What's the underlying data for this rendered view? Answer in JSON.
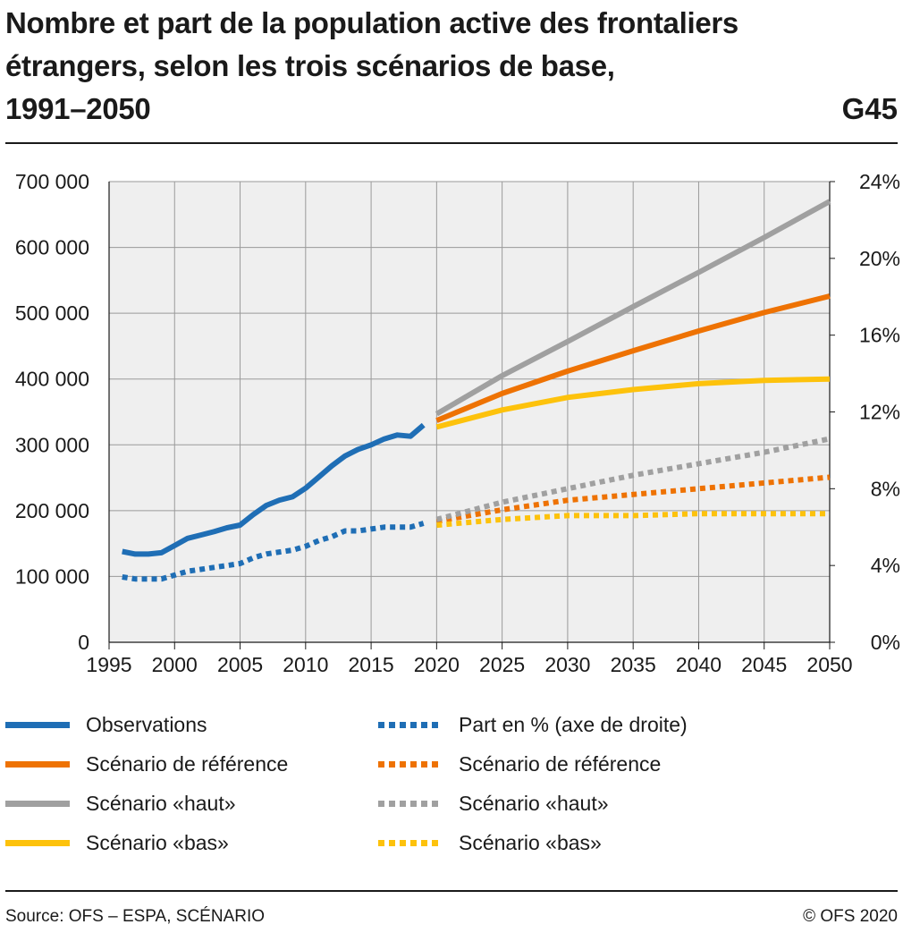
{
  "title_lines": [
    "Nombre et part de la population active des frontaliers",
    "étrangers, selon les trois scénarios de base,",
    "1991–2050"
  ],
  "chart_code": "G45",
  "source": "Source: OFS – ESPA, SCÉNARIO",
  "copyright": "© OFS 2020",
  "colors": {
    "observations": "#1f6eb5",
    "reference": "#ee7203",
    "haut": "#a0a0a0",
    "bas": "#fdc20c",
    "plot_bg": "#efefef",
    "grid": "#9a9a9a"
  },
  "legend": [
    {
      "label": "Observations",
      "color": "#1f6eb5",
      "style": "solid"
    },
    {
      "label": "Part en % (axe de droite)",
      "color": "#1f6eb5",
      "style": "dotted"
    },
    {
      "label": "Scénario de référence",
      "color": "#ee7203",
      "style": "solid"
    },
    {
      "label": "Scénario de référence",
      "color": "#ee7203",
      "style": "dotted"
    },
    {
      "label": "Scénario «haut»",
      "color": "#a0a0a0",
      "style": "solid"
    },
    {
      "label": "Scénario «haut»",
      "color": "#a0a0a0",
      "style": "dotted"
    },
    {
      "label": "Scénario «bas»",
      "color": "#fdc20c",
      "style": "solid"
    },
    {
      "label": "Scénario «bas»",
      "color": "#fdc20c",
      "style": "dotted"
    }
  ],
  "chart_data": {
    "type": "line",
    "title": "Nombre et part de la population active des frontaliers étrangers, selon les trois scénarios de base, 1991–2050",
    "xlim": [
      1995,
      2050
    ],
    "ylim_left": [
      0,
      700000
    ],
    "ylim_right": [
      0,
      24
    ],
    "x_ticks": [
      1995,
      2000,
      2005,
      2010,
      2015,
      2020,
      2025,
      2030,
      2035,
      2040,
      2045,
      2050
    ],
    "y_left_ticks": [
      {
        "value": 0,
        "label": "0"
      },
      {
        "value": 100000,
        "label": "100 000"
      },
      {
        "value": 200000,
        "label": "200 000"
      },
      {
        "value": 300000,
        "label": "300 000"
      },
      {
        "value": 400000,
        "label": "400 000"
      },
      {
        "value": 500000,
        "label": "500 000"
      },
      {
        "value": 600000,
        "label": "600 000"
      },
      {
        "value": 700000,
        "label": "700 000"
      }
    ],
    "y_right_ticks": [
      {
        "value": 0,
        "label": "0%"
      },
      {
        "value": 4,
        "label": "4%"
      },
      {
        "value": 8,
        "label": "8%"
      },
      {
        "value": 12,
        "label": "12%"
      },
      {
        "value": 16,
        "label": "16%"
      },
      {
        "value": 20,
        "label": "20%"
      },
      {
        "value": 24,
        "label": "24%"
      }
    ],
    "grid": true,
    "series": [
      {
        "name": "Observations",
        "axis": "left",
        "style": "solid",
        "color": "#1f6eb5",
        "x": [
          1996,
          1997,
          1998,
          1999,
          2000,
          2001,
          2002,
          2003,
          2004,
          2005,
          2006,
          2007,
          2008,
          2009,
          2010,
          2011,
          2012,
          2013,
          2014,
          2015,
          2016,
          2017,
          2018,
          2019
        ],
        "y": [
          138000,
          134000,
          134000,
          136000,
          147000,
          158000,
          163000,
          168000,
          174000,
          178000,
          194000,
          208000,
          216000,
          221000,
          234000,
          251000,
          268000,
          283000,
          293000,
          300000,
          309000,
          315000,
          313000,
          330000
        ]
      },
      {
        "name": "Part en % (axe de droite)",
        "axis": "right",
        "style": "dotted",
        "color": "#1f6eb5",
        "x": [
          1996,
          1997,
          1998,
          1999,
          2000,
          2001,
          2002,
          2003,
          2004,
          2005,
          2006,
          2007,
          2008,
          2009,
          2010,
          2011,
          2012,
          2013,
          2014,
          2015,
          2016,
          2017,
          2018,
          2019
        ],
        "y": [
          3.4,
          3.3,
          3.3,
          3.3,
          3.5,
          3.7,
          3.8,
          3.9,
          4.0,
          4.1,
          4.4,
          4.6,
          4.7,
          4.8,
          5.0,
          5.3,
          5.5,
          5.8,
          5.8,
          5.9,
          6.0,
          6.0,
          6.0,
          6.2
        ]
      },
      {
        "name": "Scénario de référence",
        "axis": "left",
        "style": "solid",
        "color": "#ee7203",
        "x": [
          2020,
          2025,
          2030,
          2035,
          2040,
          2045,
          2050
        ],
        "y": [
          337000,
          378000,
          412000,
          443000,
          473000,
          501000,
          526000
        ]
      },
      {
        "name": "Scénario de référence",
        "axis": "right",
        "style": "dotted",
        "color": "#ee7203",
        "x": [
          2020,
          2025,
          2030,
          2035,
          2040,
          2045,
          2050
        ],
        "y": [
          6.3,
          6.9,
          7.4,
          7.7,
          8.0,
          8.3,
          8.6
        ]
      },
      {
        "name": "Scénario «haut»",
        "axis": "left",
        "style": "solid",
        "color": "#a0a0a0",
        "x": [
          2020,
          2025,
          2030,
          2035,
          2040,
          2045,
          2050
        ],
        "y": [
          347000,
          405000,
          457000,
          510000,
          562000,
          615000,
          670000
        ]
      },
      {
        "name": "Scénario «haut»",
        "axis": "right",
        "style": "dotted",
        "color": "#a0a0a0",
        "x": [
          2020,
          2025,
          2030,
          2035,
          2040,
          2045,
          2050
        ],
        "y": [
          6.4,
          7.3,
          8.0,
          8.7,
          9.3,
          9.9,
          10.6
        ]
      },
      {
        "name": "Scénario «bas»",
        "axis": "left",
        "style": "solid",
        "color": "#fdc20c",
        "x": [
          2020,
          2025,
          2030,
          2035,
          2040,
          2045,
          2050
        ],
        "y": [
          327000,
          353000,
          372000,
          384000,
          393000,
          398000,
          400000
        ]
      },
      {
        "name": "Scénario «bas»",
        "axis": "right",
        "style": "dotted",
        "color": "#fdc20c",
        "x": [
          2020,
          2025,
          2030,
          2035,
          2040,
          2045,
          2050
        ],
        "y": [
          6.1,
          6.4,
          6.6,
          6.6,
          6.7,
          6.7,
          6.7
        ]
      }
    ]
  }
}
